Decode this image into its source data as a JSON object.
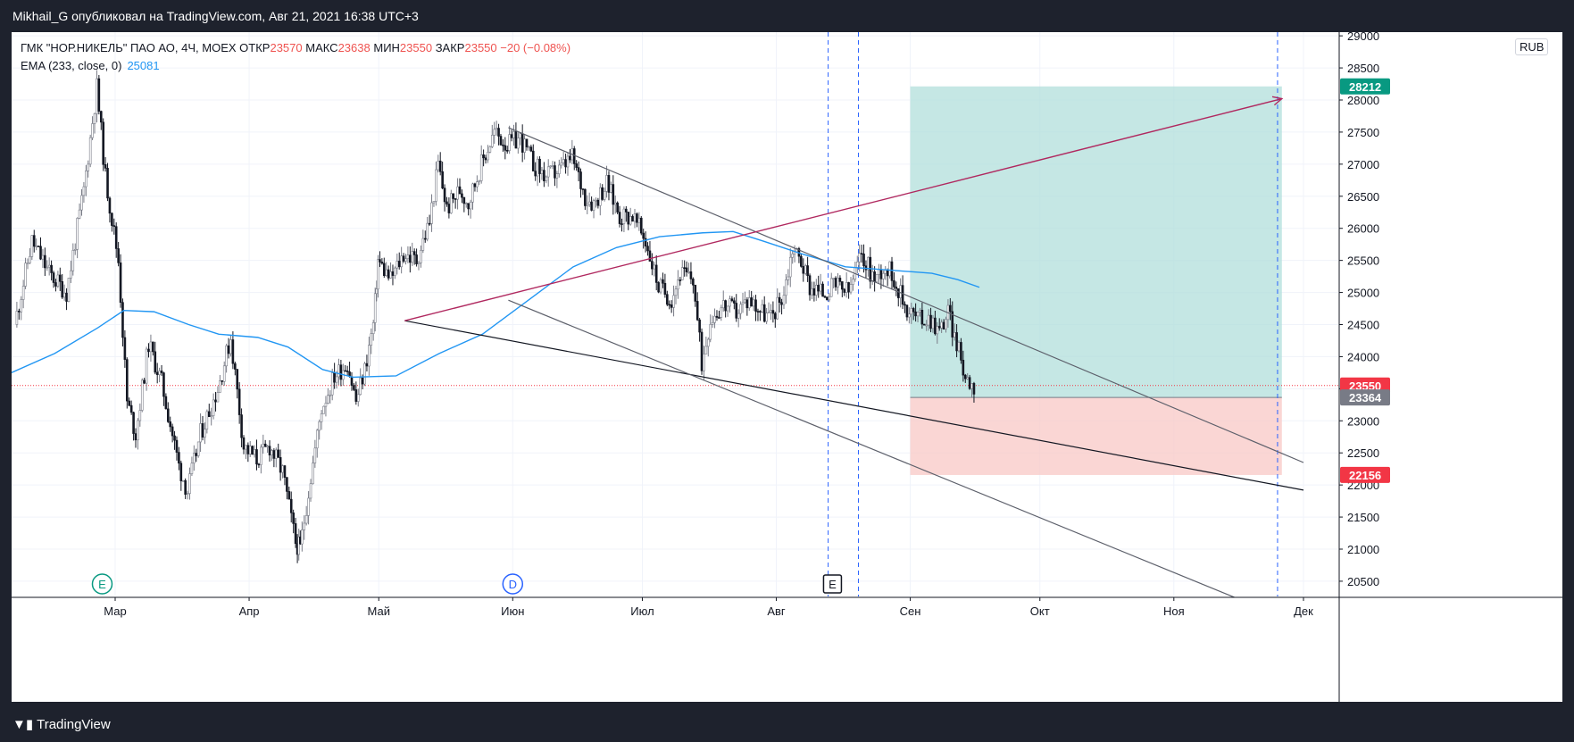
{
  "header": {
    "published": "Mikhail_G опубликовал на TradingView.com, Авг 21, 2021 16:38 UTC+3"
  },
  "legend": {
    "symbol": "ГМК \"НОР.НИКЕЛЬ\" ПАО АО, 4Ч, MOEX",
    "open_label": "ОТКР",
    "open": "23570",
    "high_label": "МАКС",
    "high": "23638",
    "low_label": "МИН",
    "low": "23550",
    "close_label": "ЗАКР",
    "close": "23550",
    "change": "−20 (−0.08%)",
    "ema_label": "EMA (233, close, 0)",
    "ema_value": "25081"
  },
  "currency_badge": "RUB",
  "footer": {
    "logo_text": "TradingView"
  },
  "colors": {
    "up_candle": "#787b86",
    "down_candle": "#131722",
    "ema": "#2196f3",
    "target_zone": "#b2dfdb",
    "stop_zone": "#f8c8c6",
    "target_price_badge": "#089981",
    "stop_price_badge": "#f23645",
    "last_price_badge": "#f23645",
    "entry_price_badge": "#787b86",
    "arrow": "#b0285f",
    "vertical_marker": "#2962ff"
  },
  "chart_data": {
    "type": "candlestick",
    "timeframe": "4H",
    "y_axis": {
      "min": 20250,
      "max": 29100,
      "ticks": [
        20500,
        21000,
        21500,
        22000,
        22500,
        23000,
        23500,
        24000,
        24500,
        25000,
        25500,
        26000,
        26500,
        27000,
        27500,
        28000,
        28500,
        29000
      ]
    },
    "x_axis": {
      "ticks": [
        {
          "date": "2021-03-01",
          "label": "Мар"
        },
        {
          "date": "2021-04-01",
          "label": "Апр"
        },
        {
          "date": "2021-05-01",
          "label": "Май"
        },
        {
          "date": "2021-06-01",
          "label": "Июн"
        },
        {
          "date": "2021-07-01",
          "label": "Июл"
        },
        {
          "date": "2021-08-01",
          "label": "Авг"
        },
        {
          "date": "2021-09-01",
          "label": "Сен"
        },
        {
          "date": "2021-10-01",
          "label": "Окт"
        },
        {
          "date": "2021-11-01",
          "label": "Ноя"
        },
        {
          "date": "2021-12-01",
          "label": "Дек"
        }
      ]
    },
    "price_series": [
      {
        "date": "2021-02-06",
        "close": 24500
      },
      {
        "date": "2021-02-10",
        "close": 25800
      },
      {
        "date": "2021-02-14",
        "close": 25300
      },
      {
        "date": "2021-02-18",
        "close": 25000
      },
      {
        "date": "2021-02-22",
        "close": 26600
      },
      {
        "date": "2021-02-25",
        "close": 28200
      },
      {
        "date": "2021-02-27",
        "close": 26800
      },
      {
        "date": "2021-03-02",
        "close": 25500
      },
      {
        "date": "2021-03-04",
        "close": 23300
      },
      {
        "date": "2021-03-06",
        "close": 22800
      },
      {
        "date": "2021-03-09",
        "close": 24200
      },
      {
        "date": "2021-03-12",
        "close": 23600
      },
      {
        "date": "2021-03-16",
        "close": 22300
      },
      {
        "date": "2021-03-18",
        "close": 21900
      },
      {
        "date": "2021-03-21",
        "close": 22800
      },
      {
        "date": "2021-03-25",
        "close": 23500
      },
      {
        "date": "2021-03-28",
        "close": 24300
      },
      {
        "date": "2021-03-31",
        "close": 22600
      },
      {
        "date": "2021-04-03",
        "close": 22400
      },
      {
        "date": "2021-04-06",
        "close": 22600
      },
      {
        "date": "2021-04-09",
        "close": 22200
      },
      {
        "date": "2021-04-12",
        "close": 21100
      },
      {
        "date": "2021-04-13",
        "close": 21000
      },
      {
        "date": "2021-04-15",
        "close": 21900
      },
      {
        "date": "2021-04-18",
        "close": 23200
      },
      {
        "date": "2021-04-21",
        "close": 23700
      },
      {
        "date": "2021-04-24",
        "close": 23900
      },
      {
        "date": "2021-04-26",
        "close": 23300
      },
      {
        "date": "2021-04-28",
        "close": 23800
      },
      {
        "date": "2021-04-30",
        "close": 24500
      },
      {
        "date": "2021-05-01",
        "close": 25500
      },
      {
        "date": "2021-05-04",
        "close": 25200
      },
      {
        "date": "2021-05-07",
        "close": 25600
      },
      {
        "date": "2021-05-10",
        "close": 25500
      },
      {
        "date": "2021-05-13",
        "close": 26100
      },
      {
        "date": "2021-05-15",
        "close": 27000
      },
      {
        "date": "2021-05-17",
        "close": 26300
      },
      {
        "date": "2021-05-20",
        "close": 26600
      },
      {
        "date": "2021-05-22",
        "close": 26400
      },
      {
        "date": "2021-05-25",
        "close": 27000
      },
      {
        "date": "2021-05-28",
        "close": 27500
      },
      {
        "date": "2021-05-31",
        "close": 27300
      },
      {
        "date": "2021-06-03",
        "close": 27400
      },
      {
        "date": "2021-06-06",
        "close": 27000
      },
      {
        "date": "2021-06-09",
        "close": 26800
      },
      {
        "date": "2021-06-12",
        "close": 26900
      },
      {
        "date": "2021-06-15",
        "close": 27100
      },
      {
        "date": "2021-06-18",
        "close": 26500
      },
      {
        "date": "2021-06-20",
        "close": 26400
      },
      {
        "date": "2021-06-23",
        "close": 26700
      },
      {
        "date": "2021-06-26",
        "close": 26200
      },
      {
        "date": "2021-06-29",
        "close": 26200
      },
      {
        "date": "2021-07-02",
        "close": 25800
      },
      {
        "date": "2021-07-05",
        "close": 25100
      },
      {
        "date": "2021-07-08",
        "close": 24900
      },
      {
        "date": "2021-07-10",
        "close": 25300
      },
      {
        "date": "2021-07-13",
        "close": 25200
      },
      {
        "date": "2021-07-15",
        "close": 23900
      },
      {
        "date": "2021-07-17",
        "close": 24600
      },
      {
        "date": "2021-07-20",
        "close": 24800
      },
      {
        "date": "2021-07-23",
        "close": 24700
      },
      {
        "date": "2021-07-26",
        "close": 24900
      },
      {
        "date": "2021-07-29",
        "close": 24700
      },
      {
        "date": "2021-07-31",
        "close": 24600
      },
      {
        "date": "2021-08-03",
        "close": 25000
      },
      {
        "date": "2021-08-05",
        "close": 25700
      },
      {
        "date": "2021-08-07",
        "close": 25500
      },
      {
        "date": "2021-08-09",
        "close": 25100
      },
      {
        "date": "2021-08-12",
        "close": 25000
      },
      {
        "date": "2021-08-15",
        "close": 25100
      },
      {
        "date": "2021-08-18",
        "close": 25000
      },
      {
        "date": "2021-08-21",
        "close": 25600
      },
      {
        "date": "2021-08-24",
        "close": 25200
      },
      {
        "date": "2021-08-26",
        "close": 25400
      },
      {
        "date": "2021-08-28",
        "close": 25300
      },
      {
        "date": "2021-08-31",
        "close": 24800
      },
      {
        "date": "2021-09-03",
        "close": 24600
      },
      {
        "date": "2021-09-06",
        "close": 24600
      },
      {
        "date": "2021-09-08",
        "close": 24400
      },
      {
        "date": "2021-09-10",
        "close": 24700
      },
      {
        "date": "2021-09-12",
        "close": 24200
      },
      {
        "date": "2021-09-14",
        "close": 23700
      },
      {
        "date": "2021-09-16",
        "close": 23550
      }
    ],
    "ema_series": [
      {
        "date": "2021-02-05",
        "value": 23750
      },
      {
        "date": "2021-02-15",
        "value": 24050
      },
      {
        "date": "2021-02-25",
        "value": 24450
      },
      {
        "date": "2021-03-03",
        "value": 24720
      },
      {
        "date": "2021-03-10",
        "value": 24700
      },
      {
        "date": "2021-03-18",
        "value": 24500
      },
      {
        "date": "2021-03-25",
        "value": 24350
      },
      {
        "date": "2021-04-03",
        "value": 24300
      },
      {
        "date": "2021-04-10",
        "value": 24150
      },
      {
        "date": "2021-04-18",
        "value": 23800
      },
      {
        "date": "2021-04-25",
        "value": 23680
      },
      {
        "date": "2021-05-05",
        "value": 23700
      },
      {
        "date": "2021-05-15",
        "value": 24050
      },
      {
        "date": "2021-05-25",
        "value": 24350
      },
      {
        "date": "2021-06-05",
        "value": 24900
      },
      {
        "date": "2021-06-15",
        "value": 25400
      },
      {
        "date": "2021-06-25",
        "value": 25700
      },
      {
        "date": "2021-07-05",
        "value": 25870
      },
      {
        "date": "2021-07-15",
        "value": 25930
      },
      {
        "date": "2021-07-22",
        "value": 25950
      },
      {
        "date": "2021-07-29",
        "value": 25800
      },
      {
        "date": "2021-08-07",
        "value": 25600
      },
      {
        "date": "2021-08-17",
        "value": 25400
      },
      {
        "date": "2021-08-27",
        "value": 25350
      },
      {
        "date": "2021-09-06",
        "value": 25300
      },
      {
        "date": "2021-09-12",
        "value": 25200
      },
      {
        "date": "2021-09-17",
        "value": 25081
      }
    ],
    "trendlines": [
      {
        "name": "upper-trendline",
        "from": {
          "date": "2021-05-31",
          "value": 27570
        },
        "to": {
          "date": "2021-12-01",
          "value": 22350
        }
      },
      {
        "name": "lower-trendline",
        "from": {
          "date": "2021-05-07",
          "value": 24560
        },
        "to": {
          "date": "2021-12-01",
          "value": 21920
        }
      },
      {
        "name": "channel-trendline",
        "from": {
          "date": "2021-05-31",
          "value": 24880
        },
        "to": {
          "date": "2021-11-15",
          "value": 20250
        }
      }
    ],
    "arrow": {
      "from": {
        "date": "2021-05-07",
        "value": 24560
      },
      "to": {
        "date": "2021-11-26",
        "value": 28020
      }
    },
    "position": {
      "entry": 23364,
      "target": 28212,
      "stop": 22156,
      "start_date": "2021-09-01",
      "end_date": "2021-11-26"
    },
    "last_price": 23550,
    "vertical_markers": [
      "2021-08-13",
      "2021-08-20",
      "2021-11-25"
    ],
    "events": [
      {
        "type": "earnings",
        "label": "E",
        "date": "2021-02-26",
        "style": "circle"
      },
      {
        "type": "dividend",
        "label": "D",
        "date": "2021-06-01",
        "style": "circle"
      },
      {
        "type": "earnings",
        "label": "E",
        "date": "2021-08-14",
        "style": "square"
      }
    ],
    "price_badges": [
      {
        "label": "28212",
        "value": 28212,
        "color": "#089981"
      },
      {
        "label": "23550",
        "value": 23550,
        "color": "#f23645"
      },
      {
        "label": "23364",
        "value": 23364,
        "color": "#787b86"
      },
      {
        "label": "22156",
        "value": 22156,
        "color": "#f23645"
      }
    ]
  }
}
